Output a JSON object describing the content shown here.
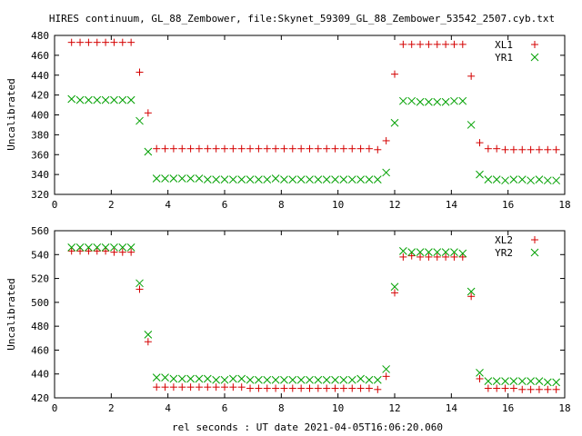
{
  "title": "HIRES continuum, GL_88_Zembower, file:Skynet_59309_GL_88_Zembower_53542_2507.cyb.txt",
  "xlabel": "rel seconds : UT date 2021-04-05T16:06:20.060",
  "colors": {
    "red": "#d40000",
    "green": "#00a000"
  },
  "chart_data": [
    {
      "type": "scatter",
      "ylabel": "Uncalibrated",
      "xlim": [
        0,
        18
      ],
      "ylim": [
        320,
        480
      ],
      "xticks": [
        0,
        2,
        4,
        6,
        8,
        10,
        12,
        14,
        16,
        18
      ],
      "yticks": [
        320,
        340,
        360,
        380,
        400,
        420,
        440,
        460,
        480
      ],
      "legend": "top-right",
      "grid": false,
      "series": [
        {
          "name": "XL1",
          "marker": "plus",
          "color": "#d40000",
          "x": [
            0.6,
            0.9,
            1.2,
            1.5,
            1.8,
            2.1,
            2.4,
            2.7,
            3.0,
            3.3,
            3.6,
            3.9,
            4.2,
            4.5,
            4.8,
            5.1,
            5.4,
            5.7,
            6.0,
            6.3,
            6.6,
            6.9,
            7.2,
            7.5,
            7.8,
            8.1,
            8.4,
            8.7,
            9.0,
            9.3,
            9.6,
            9.9,
            10.2,
            10.5,
            10.8,
            11.1,
            11.4,
            11.7,
            12.0,
            12.3,
            12.6,
            12.9,
            13.2,
            13.5,
            13.8,
            14.1,
            14.4,
            14.7,
            15.0,
            15.3,
            15.6,
            15.9,
            16.2,
            16.5,
            16.8,
            17.1,
            17.4,
            17.7
          ],
          "y": [
            473,
            473,
            473,
            473,
            473,
            473,
            473,
            473,
            443,
            402,
            366,
            366,
            366,
            366,
            366,
            366,
            366,
            366,
            366,
            366,
            366,
            366,
            366,
            366,
            366,
            366,
            366,
            366,
            366,
            366,
            366,
            366,
            366,
            366,
            366,
            366,
            365,
            374,
            441,
            471,
            471,
            471,
            471,
            471,
            471,
            471,
            471,
            439,
            372,
            366,
            366,
            365,
            365,
            365,
            365,
            365,
            365,
            365
          ]
        },
        {
          "name": "YR1",
          "marker": "cross",
          "color": "#00a000",
          "x": [
            0.6,
            0.9,
            1.2,
            1.5,
            1.8,
            2.1,
            2.4,
            2.7,
            3.0,
            3.3,
            3.6,
            3.9,
            4.2,
            4.5,
            4.8,
            5.1,
            5.4,
            5.7,
            6.0,
            6.3,
            6.6,
            6.9,
            7.2,
            7.5,
            7.8,
            8.1,
            8.4,
            8.7,
            9.0,
            9.3,
            9.6,
            9.9,
            10.2,
            10.5,
            10.8,
            11.1,
            11.4,
            11.7,
            12.0,
            12.3,
            12.6,
            12.9,
            13.2,
            13.5,
            13.8,
            14.1,
            14.4,
            14.7,
            15.0,
            15.3,
            15.6,
            15.9,
            16.2,
            16.5,
            16.8,
            17.1,
            17.4,
            17.7
          ],
          "y": [
            416,
            415,
            415,
            415,
            415,
            415,
            415,
            415,
            394,
            363,
            336,
            336,
            336,
            336,
            336,
            336,
            335,
            335,
            335,
            335,
            335,
            335,
            335,
            335,
            336,
            335,
            335,
            335,
            335,
            335,
            335,
            335,
            335,
            335,
            335,
            335,
            335,
            342,
            392,
            414,
            414,
            413,
            413,
            413,
            413,
            414,
            414,
            390,
            340,
            335,
            335,
            334,
            335,
            335,
            334,
            335,
            334,
            334
          ]
        }
      ]
    },
    {
      "type": "scatter",
      "ylabel": "Uncalibrated",
      "xlim": [
        0,
        18
      ],
      "ylim": [
        420,
        560
      ],
      "xticks": [
        0,
        2,
        4,
        6,
        8,
        10,
        12,
        14,
        16,
        18
      ],
      "yticks": [
        420,
        440,
        460,
        480,
        500,
        520,
        540,
        560
      ],
      "legend": "top-right",
      "grid": false,
      "series": [
        {
          "name": "XL2",
          "marker": "plus",
          "color": "#d40000",
          "x": [
            0.6,
            0.9,
            1.2,
            1.5,
            1.8,
            2.1,
            2.4,
            2.7,
            3.0,
            3.3,
            3.6,
            3.9,
            4.2,
            4.5,
            4.8,
            5.1,
            5.4,
            5.7,
            6.0,
            6.3,
            6.6,
            6.9,
            7.2,
            7.5,
            7.8,
            8.1,
            8.4,
            8.7,
            9.0,
            9.3,
            9.6,
            9.9,
            10.2,
            10.5,
            10.8,
            11.1,
            11.4,
            11.7,
            12.0,
            12.3,
            12.6,
            12.9,
            13.2,
            13.5,
            13.8,
            14.1,
            14.4,
            14.7,
            15.0,
            15.3,
            15.6,
            15.9,
            16.2,
            16.5,
            16.8,
            17.1,
            17.4,
            17.7
          ],
          "y": [
            543,
            543,
            543,
            543,
            543,
            542,
            542,
            542,
            511,
            467,
            429,
            429,
            429,
            429,
            429,
            429,
            429,
            429,
            429,
            429,
            429,
            428,
            428,
            428,
            428,
            428,
            428,
            428,
            428,
            428,
            428,
            428,
            428,
            428,
            428,
            428,
            427,
            438,
            508,
            538,
            539,
            538,
            538,
            538,
            538,
            538,
            538,
            505,
            436,
            428,
            428,
            428,
            428,
            427,
            427,
            427,
            427,
            427
          ]
        },
        {
          "name": "YR2",
          "marker": "cross",
          "color": "#00a000",
          "x": [
            0.6,
            0.9,
            1.2,
            1.5,
            1.8,
            2.1,
            2.4,
            2.7,
            3.0,
            3.3,
            3.6,
            3.9,
            4.2,
            4.5,
            4.8,
            5.1,
            5.4,
            5.7,
            6.0,
            6.3,
            6.6,
            6.9,
            7.2,
            7.5,
            7.8,
            8.1,
            8.4,
            8.7,
            9.0,
            9.3,
            9.6,
            9.9,
            10.2,
            10.5,
            10.8,
            11.1,
            11.4,
            11.7,
            12.0,
            12.3,
            12.6,
            12.9,
            13.2,
            13.5,
            13.8,
            14.1,
            14.4,
            14.7,
            15.0,
            15.3,
            15.6,
            15.9,
            16.2,
            16.5,
            16.8,
            17.1,
            17.4,
            17.7
          ],
          "y": [
            546,
            546,
            546,
            546,
            546,
            546,
            546,
            546,
            516,
            473,
            437,
            437,
            436,
            436,
            436,
            436,
            436,
            435,
            435,
            436,
            436,
            435,
            435,
            435,
            435,
            435,
            435,
            435,
            435,
            435,
            435,
            435,
            435,
            435,
            436,
            435,
            435,
            444,
            513,
            543,
            542,
            542,
            542,
            542,
            542,
            542,
            541,
            509,
            441,
            434,
            434,
            434,
            434,
            434,
            434,
            434,
            433,
            433
          ]
        }
      ]
    }
  ]
}
